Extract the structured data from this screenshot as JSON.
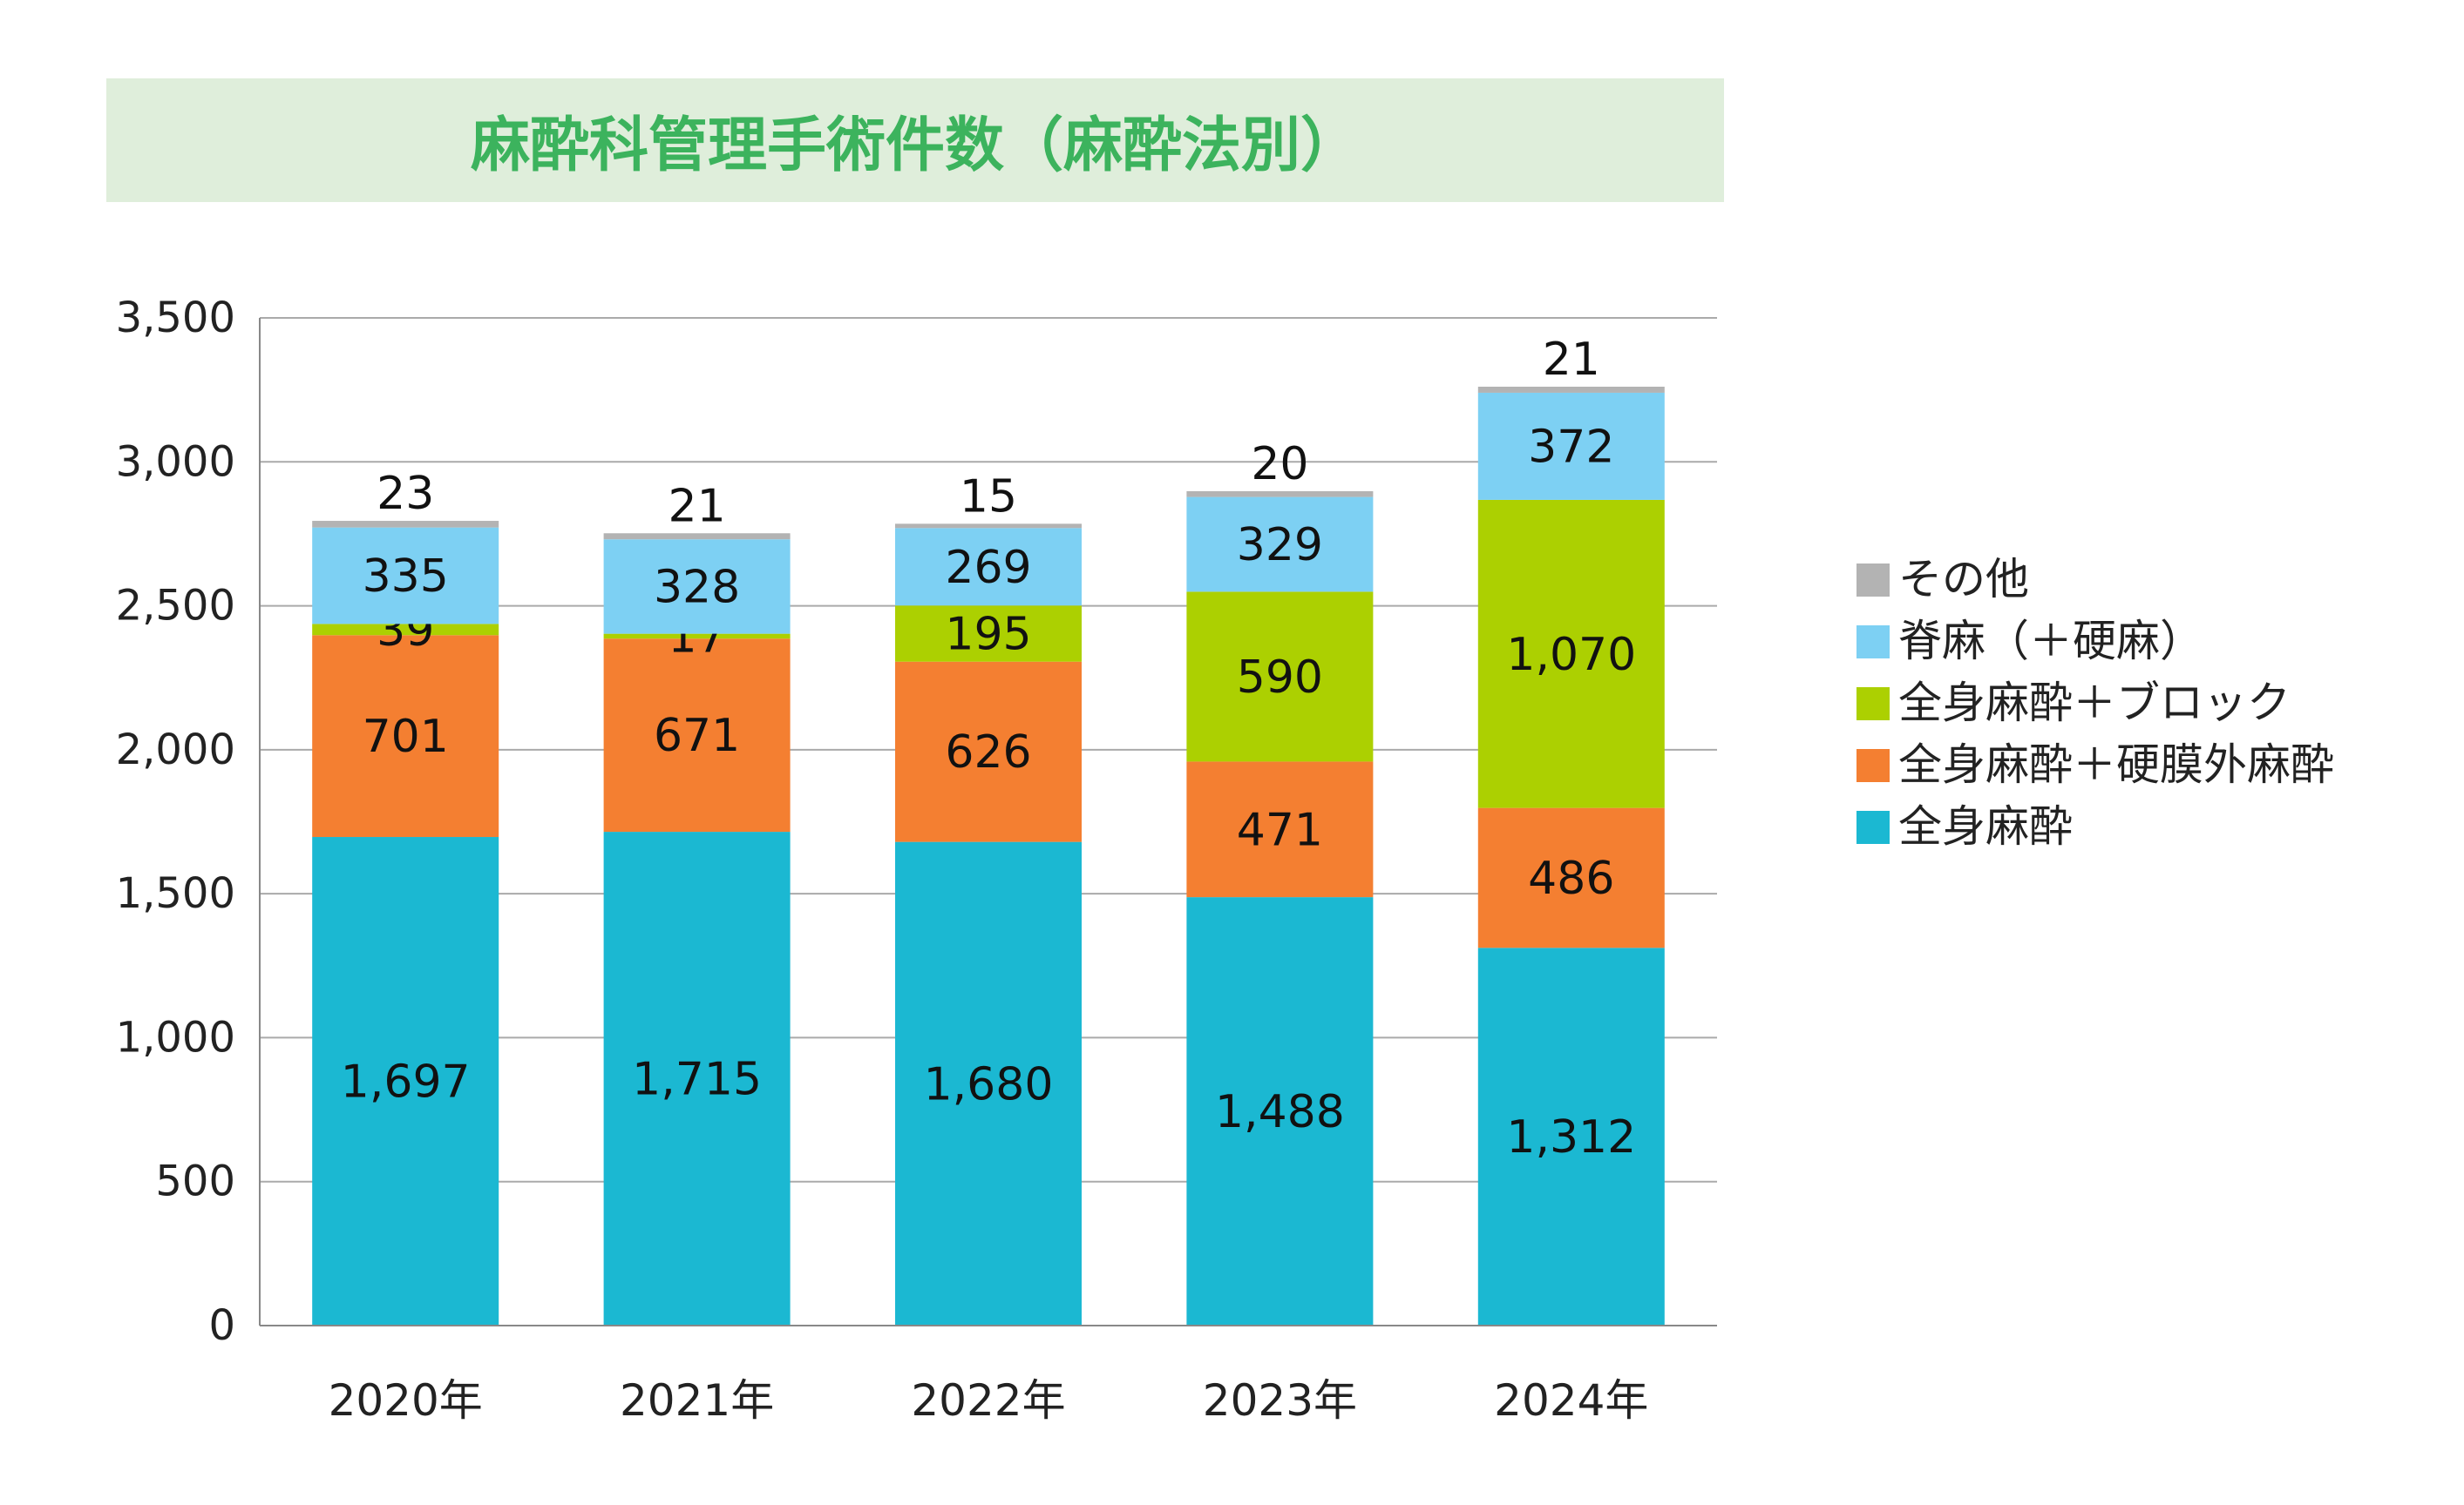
{
  "chart_data": {
    "type": "bar",
    "stacked": true,
    "title": "麻酔科管理手術件数（麻酔法別）",
    "categories": [
      "2020年",
      "2021年",
      "2022年",
      "2023年",
      "2024年"
    ],
    "ylim": [
      0,
      3500
    ],
    "yticks": [
      0,
      500,
      1000,
      1500,
      2000,
      2500,
      3000,
      3500
    ],
    "ytick_labels": [
      "0",
      "500",
      "1,000",
      "1,500",
      "2,000",
      "2,500",
      "3,000",
      "3,500"
    ],
    "grid": true,
    "legend": "right",
    "series": [
      {
        "name": "全身麻酔",
        "color": "#1bb8d2",
        "values": [
          1697,
          1715,
          1680,
          1488,
          1312
        ],
        "labels": [
          "1,697",
          "1,715",
          "1,680",
          "1,488",
          "1,312"
        ]
      },
      {
        "name": "全身麻酔＋硬膜外麻酔",
        "color": "#f47f31",
        "values": [
          701,
          671,
          626,
          471,
          486
        ],
        "labels": [
          "701",
          "671",
          "626",
          "471",
          "486"
        ]
      },
      {
        "name": "全身麻酔＋ブロック",
        "color": "#acd001",
        "values": [
          39,
          17,
          195,
          590,
          1070
        ],
        "labels": [
          "39",
          "17",
          "195",
          "590",
          "1,070"
        ]
      },
      {
        "name": "脊麻（＋硬麻）",
        "color": "#7dd0f3",
        "values": [
          335,
          328,
          269,
          329,
          372
        ],
        "labels": [
          "335",
          "328",
          "269",
          "329",
          "372"
        ]
      },
      {
        "name": "その他",
        "color": "#b3b3b3",
        "values": [
          23,
          21,
          15,
          20,
          21
        ],
        "labels": [
          "23",
          "21",
          "15",
          "20",
          "21"
        ]
      }
    ],
    "title_color": "#3cb35d",
    "banner_color": "#dfeedb",
    "grid_color": "#aaaaaa"
  }
}
